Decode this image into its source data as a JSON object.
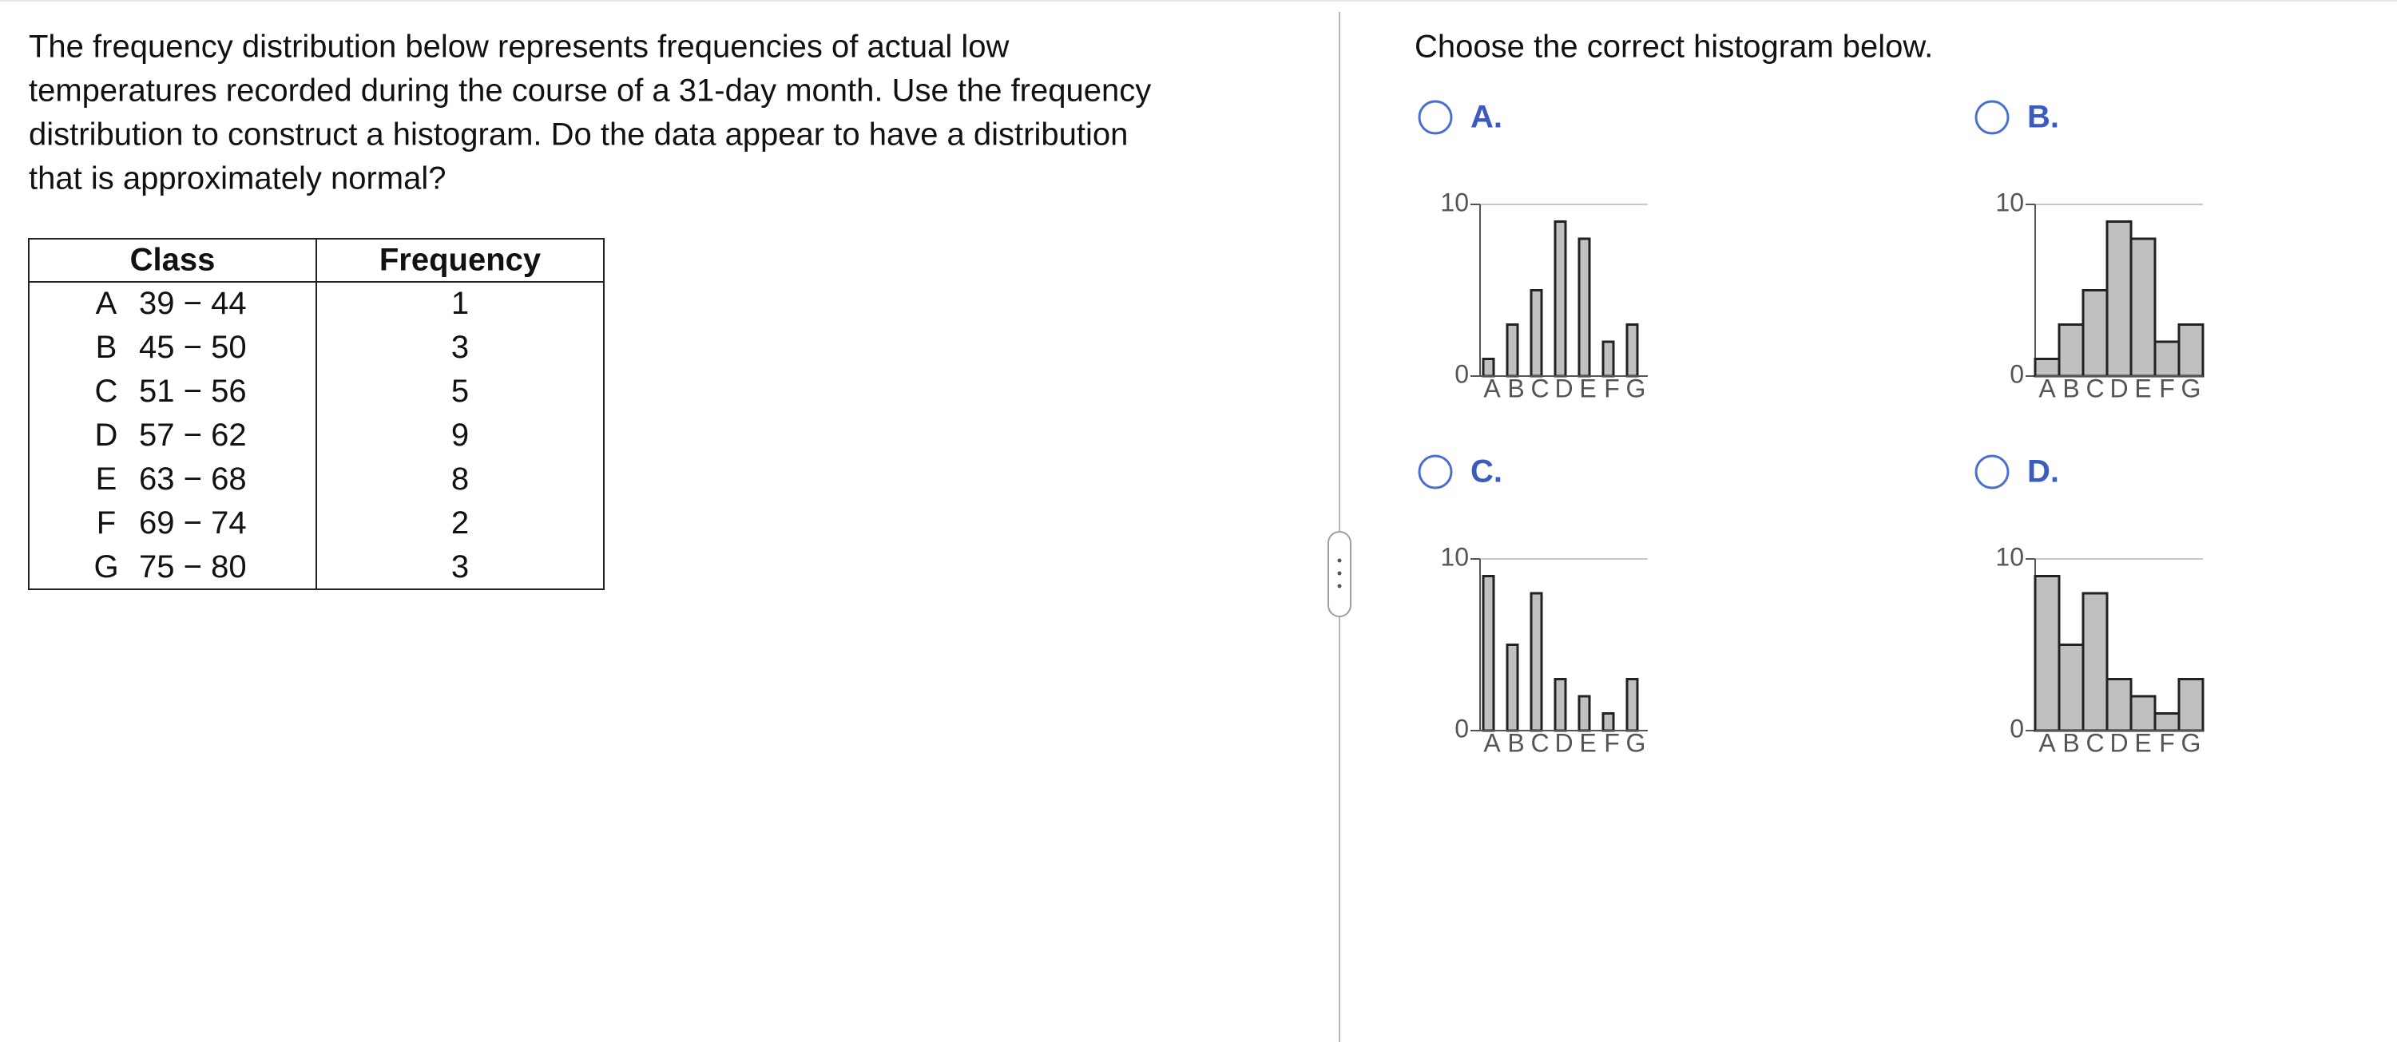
{
  "question": {
    "lines": [
      "The frequency distribution below represents frequencies of actual low",
      "temperatures recorded during the course of a 31-day month. Use the frequency",
      "distribution to construct a histogram. Do the data appear to have a distribution",
      "that is approximately normal?"
    ]
  },
  "table": {
    "headers": [
      "Class",
      "Frequency"
    ],
    "rows": [
      {
        "label": "A",
        "range": "39 − 44",
        "frequency": 1
      },
      {
        "label": "B",
        "range": "45 − 50",
        "frequency": 3
      },
      {
        "label": "C",
        "range": "51 − 56",
        "frequency": 5
      },
      {
        "label": "D",
        "range": "57 − 62",
        "frequency": 9
      },
      {
        "label": "E",
        "range": "63 − 68",
        "frequency": 8
      },
      {
        "label": "F",
        "range": "69 − 74",
        "frequency": 2
      },
      {
        "label": "G",
        "range": "75 − 80",
        "frequency": 3
      }
    ]
  },
  "prompt": "Choose the correct histogram below.",
  "options": [
    {
      "label": "A.",
      "chart": {
        "type": "bar",
        "categories": [
          "A",
          "B",
          "C",
          "D",
          "E",
          "F",
          "G"
        ],
        "values": [
          1,
          3,
          5,
          9,
          8,
          2,
          3
        ],
        "color": "#c0c0c0",
        "ylim": [
          0,
          10
        ],
        "yticks": [
          0,
          10
        ],
        "grid": true
      }
    },
    {
      "label": "B.",
      "chart": {
        "type": "bar",
        "categories": [
          "A",
          "B",
          "C",
          "D",
          "E",
          "F",
          "G"
        ],
        "values": [
          1,
          3,
          5,
          9,
          8,
          2,
          3
        ],
        "color": "#c0c0c0",
        "ylim": [
          0,
          10
        ],
        "yticks": [
          0,
          10
        ],
        "grid": true
      }
    },
    {
      "label": "C.",
      "chart": {
        "type": "bar",
        "categories": [
          "A",
          "B",
          "C",
          "D",
          "E",
          "F",
          "G"
        ],
        "values": [
          9,
          5,
          8,
          3,
          2,
          1,
          3
        ],
        "color": "#c0c0c0",
        "ylim": [
          0,
          10
        ],
        "yticks": [
          0,
          10
        ],
        "grid": true
      }
    },
    {
      "label": "D.",
      "chart": {
        "type": "bar",
        "categories": [
          "A",
          "B",
          "C",
          "D",
          "E",
          "F",
          "G"
        ],
        "values": [
          9,
          5,
          8,
          3,
          2,
          1,
          3
        ],
        "color": "#c0c0c0",
        "ylim": [
          0,
          10
        ],
        "yticks": [
          0,
          10
        ],
        "grid": true
      }
    }
  ]
}
